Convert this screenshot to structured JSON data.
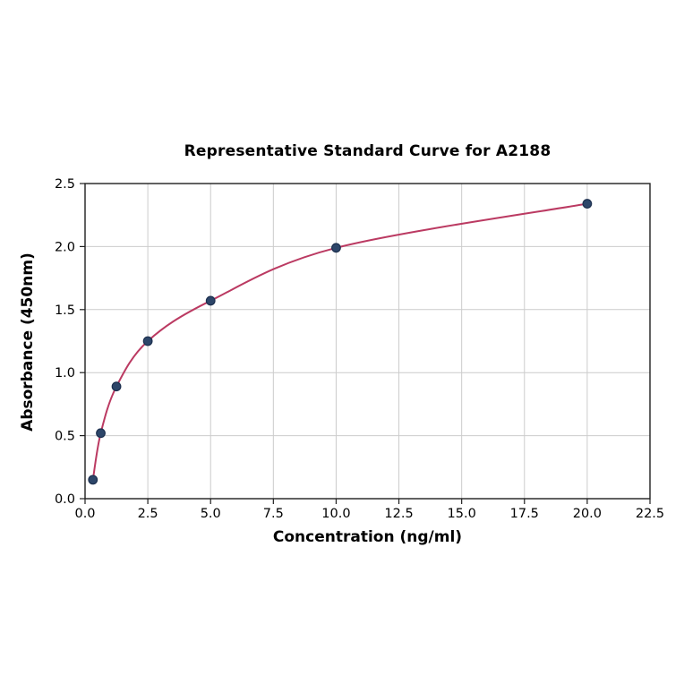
{
  "figure": {
    "background": "#ffffff"
  },
  "chart_data": {
    "type": "scatter",
    "title": "Representative Standard Curve for A2188",
    "xlabel": "Concentration (ng/ml)",
    "ylabel": "Absorbance (450nm)",
    "points": [
      {
        "x": 0.3125,
        "y": 0.15
      },
      {
        "x": 0.625,
        "y": 0.52
      },
      {
        "x": 1.25,
        "y": 0.89
      },
      {
        "x": 2.5,
        "y": 1.25
      },
      {
        "x": 5.0,
        "y": 1.57
      },
      {
        "x": 10.0,
        "y": 1.99
      },
      {
        "x": 20.0,
        "y": 2.34
      }
    ],
    "xlim": [
      0,
      22.5
    ],
    "ylim": [
      0,
      2.5
    ],
    "xticks": [
      0,
      2.5,
      5,
      7.5,
      10,
      12.5,
      15,
      17.5,
      20,
      22.5
    ],
    "yticks": [
      0,
      0.5,
      1,
      1.5,
      2,
      2.5
    ],
    "tick_decimals": 1,
    "grid": true,
    "legend_position": "none",
    "colors": {
      "curve": "#bb3a62",
      "marker_fill": "#2d4669",
      "marker_edge": "#1c2f4e",
      "grid": "#cccccc",
      "spine": "#1f1f1f",
      "tick_text": "#000000"
    }
  }
}
